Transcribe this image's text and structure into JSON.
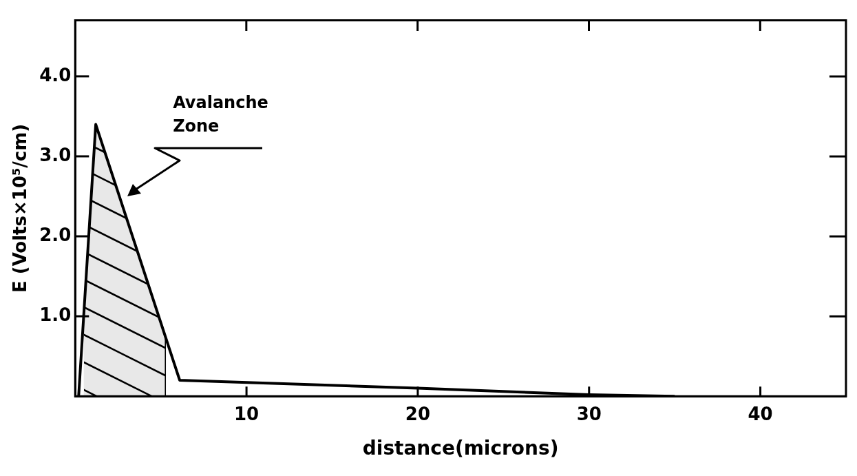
{
  "chart_data": {
    "type": "line",
    "xlabel": "distance(microns)",
    "ylabel": "E (Volts×10⁵/cm)",
    "x": [
      0.2,
      1.2,
      6.1,
      20,
      30,
      35
    ],
    "series": [
      {
        "color": "#000000",
        "values": [
          0,
          3.4,
          0.2,
          0.1,
          0.02,
          0
        ]
      }
    ],
    "xlim": [
      0,
      45
    ],
    "xticks": [
      10,
      20,
      30,
      40
    ],
    "ylim": [
      0,
      4.7
    ],
    "yticks": [
      {
        "value": 1,
        "label": "1.0"
      },
      {
        "value": 2,
        "label": "2.0"
      },
      {
        "value": 3,
        "label": "3.0"
      },
      {
        "value": 4,
        "label": "4.0"
      }
    ],
    "bands": [
      {
        "axis": "x",
        "from": 0.5,
        "to": 5.3,
        "label": "Avalanche Zone",
        "color": "#e8e8e8"
      }
    ],
    "grid": false,
    "legend": false,
    "marker": "none",
    "line_style": "solid"
  }
}
